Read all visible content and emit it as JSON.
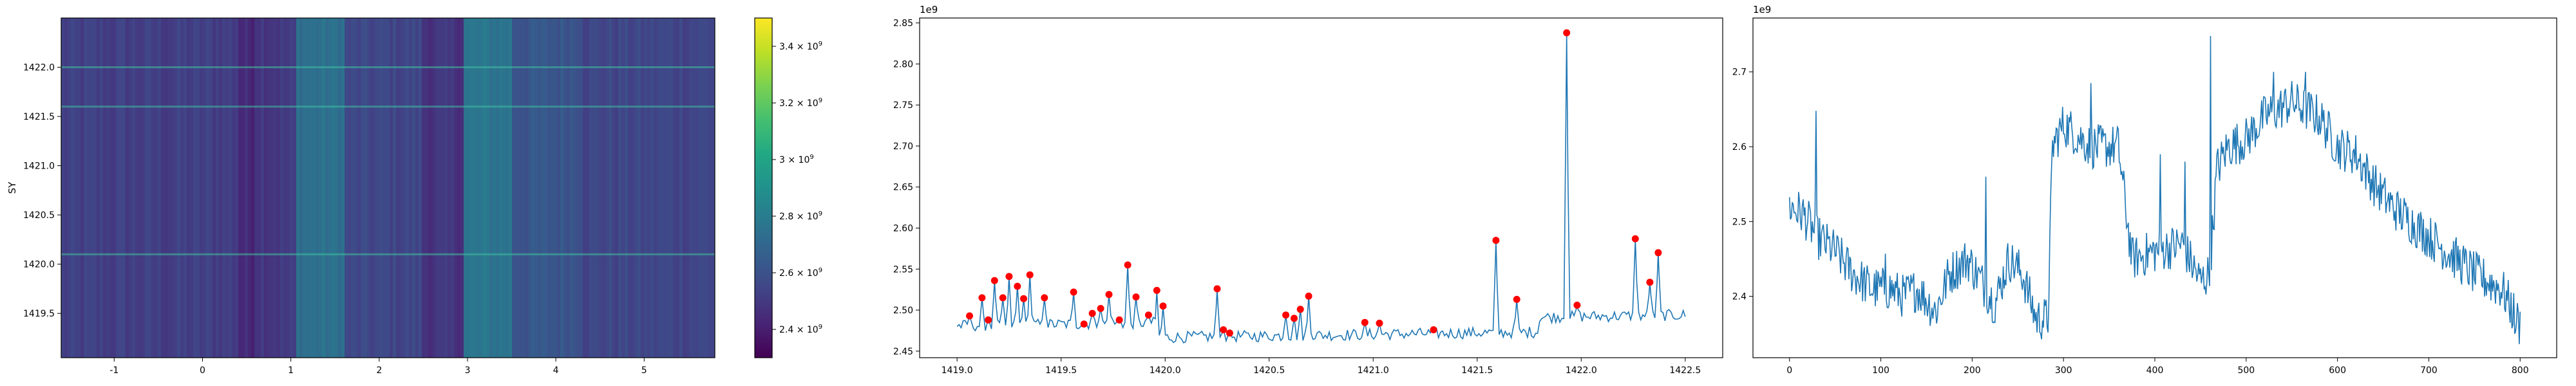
{
  "chart_data": [
    {
      "type": "heatmap",
      "ylabel": "SY",
      "xlim": [
        -1.6,
        5.8
      ],
      "ylim": [
        1419.05,
        1422.5
      ],
      "xticks": [
        "-1",
        "0",
        "1",
        "2",
        "3",
        "4",
        "5"
      ],
      "xtick_values": [
        -1,
        0,
        1,
        2,
        3,
        4,
        5
      ],
      "yticks": [
        "1419.5",
        "1420.0",
        "1420.5",
        "1421.0",
        "1421.5",
        "1422.0"
      ],
      "ytick_values": [
        1419.5,
        1420.0,
        1420.5,
        1421.0,
        1421.5,
        1422.0
      ],
      "colormap": "viridis",
      "colorbar": {
        "range": [
          2300000000.0,
          3500000000.0
        ],
        "ticks": [
          {
            "value": 2400000000.0,
            "base": "2.4 × 10",
            "exp": "9"
          },
          {
            "value": 2600000000.0,
            "base": "2.6 × 10",
            "exp": "9"
          },
          {
            "value": 2800000000.0,
            "base": "2.8 × 10",
            "exp": "9"
          },
          {
            "value": 3000000000.0,
            "base": "3 × 10",
            "exp": "9"
          },
          {
            "value": 3200000000.0,
            "base": "3.2 × 10",
            "exp": "9"
          },
          {
            "value": 3400000000.0,
            "base": "3.4 × 10",
            "exp": "9"
          }
        ]
      },
      "column_bands": [
        {
          "x": [
            -1.6,
            0.4
          ],
          "value": 2520000000.0
        },
        {
          "x": [
            0.4,
            0.6
          ],
          "value": 2440000000.0
        },
        {
          "x": [
            0.6,
            1.05
          ],
          "value": 2500000000.0
        },
        {
          "x": [
            1.05,
            1.6
          ],
          "value": 2740000000.0
        },
        {
          "x": [
            1.6,
            2.5
          ],
          "value": 2550000000.0
        },
        {
          "x": [
            2.5,
            2.95
          ],
          "value": 2480000000.0
        },
        {
          "x": [
            2.95,
            3.5
          ],
          "value": 2760000000.0
        },
        {
          "x": [
            3.5,
            4.3
          ],
          "value": 2620000000.0
        },
        {
          "x": [
            4.3,
            5.8
          ],
          "value": 2550000000.0
        }
      ],
      "row_highlights": [
        1422.0,
        1421.6,
        1420.1
      ]
    },
    {
      "type": "line",
      "color": "#1f77b4",
      "marker_color": "#ff0000",
      "offset_text": "1e9",
      "xlim": [
        1418.82,
        1422.68
      ],
      "ylim": [
        2.442,
        2.856
      ],
      "xticks": [
        "1419.0",
        "1419.5",
        "1420.0",
        "1420.5",
        "1421.0",
        "1421.5",
        "1422.0",
        "1422.5"
      ],
      "xtick_values": [
        1419.0,
        1419.5,
        1420.0,
        1420.5,
        1421.0,
        1421.5,
        1422.0,
        1422.5
      ],
      "yticks": [
        "2.45",
        "2.50",
        "2.55",
        "2.60",
        "2.65",
        "2.70",
        "2.75",
        "2.80",
        "2.85"
      ],
      "ytick_values": [
        2.45,
        2.5,
        2.55,
        2.6,
        2.65,
        2.7,
        2.75,
        2.8,
        2.85
      ],
      "peaks": [
        {
          "x": 1419.06,
          "y": 2.493
        },
        {
          "x": 1419.12,
          "y": 2.515
        },
        {
          "x": 1419.15,
          "y": 2.488
        },
        {
          "x": 1419.18,
          "y": 2.536
        },
        {
          "x": 1419.22,
          "y": 2.515
        },
        {
          "x": 1419.25,
          "y": 2.541
        },
        {
          "x": 1419.29,
          "y": 2.529
        },
        {
          "x": 1419.32,
          "y": 2.514
        },
        {
          "x": 1419.35,
          "y": 2.543
        },
        {
          "x": 1419.42,
          "y": 2.515
        },
        {
          "x": 1419.56,
          "y": 2.522
        },
        {
          "x": 1419.61,
          "y": 2.483
        },
        {
          "x": 1419.65,
          "y": 2.496
        },
        {
          "x": 1419.69,
          "y": 2.502
        },
        {
          "x": 1419.73,
          "y": 2.519
        },
        {
          "x": 1419.78,
          "y": 2.488
        },
        {
          "x": 1419.82,
          "y": 2.555
        },
        {
          "x": 1419.86,
          "y": 2.516
        },
        {
          "x": 1419.92,
          "y": 2.494
        },
        {
          "x": 1419.96,
          "y": 2.524
        },
        {
          "x": 1419.99,
          "y": 2.505
        },
        {
          "x": 1420.25,
          "y": 2.526
        },
        {
          "x": 1420.28,
          "y": 2.476
        },
        {
          "x": 1420.31,
          "y": 2.472
        },
        {
          "x": 1420.58,
          "y": 2.494
        },
        {
          "x": 1420.62,
          "y": 2.49
        },
        {
          "x": 1420.65,
          "y": 2.501
        },
        {
          "x": 1420.69,
          "y": 2.517
        },
        {
          "x": 1420.96,
          "y": 2.485
        },
        {
          "x": 1421.03,
          "y": 2.484
        },
        {
          "x": 1421.29,
          "y": 2.476
        },
        {
          "x": 1421.59,
          "y": 2.585
        },
        {
          "x": 1421.69,
          "y": 2.513
        },
        {
          "x": 1421.93,
          "y": 2.838
        },
        {
          "x": 1421.98,
          "y": 2.506
        },
        {
          "x": 1422.26,
          "y": 2.587
        },
        {
          "x": 1422.33,
          "y": 2.534
        },
        {
          "x": 1422.37,
          "y": 2.57
        }
      ],
      "x_start": 1419.0,
      "x_end": 1422.5,
      "baseline_start": 2.481,
      "baseline_end": 2.494
    },
    {
      "type": "line",
      "color": "#1f77b4",
      "offset_text": "1e9",
      "xlim": [
        -40,
        840
      ],
      "ylim": [
        2.318,
        2.772
      ],
      "xticks": [
        "0",
        "100",
        "200",
        "300",
        "400",
        "500",
        "600",
        "700",
        "800"
      ],
      "xtick_values": [
        0,
        100,
        200,
        300,
        400,
        500,
        600,
        700,
        800
      ],
      "yticks": [
        "2.4",
        "2.5",
        "2.6",
        "2.7"
      ],
      "ytick_values": [
        2.4,
        2.5,
        2.6,
        2.7
      ],
      "x_range": [
        0,
        800
      ],
      "level_profile": [
        [
          0,
          2.52
        ],
        [
          15,
          2.51
        ],
        [
          30,
          2.48
        ],
        [
          50,
          2.46
        ],
        [
          70,
          2.43
        ],
        [
          90,
          2.41
        ],
        [
          110,
          2.41
        ],
        [
          125,
          2.4
        ],
        [
          140,
          2.41
        ],
        [
          160,
          2.38
        ],
        [
          175,
          2.43
        ],
        [
          195,
          2.45
        ],
        [
          210,
          2.42
        ],
        [
          225,
          2.39
        ],
        [
          240,
          2.45
        ],
        [
          255,
          2.43
        ],
        [
          270,
          2.37
        ],
        [
          283,
          2.37
        ],
        [
          288,
          2.6
        ],
        [
          300,
          2.63
        ],
        [
          330,
          2.6
        ],
        [
          360,
          2.6
        ],
        [
          375,
          2.45
        ],
        [
          400,
          2.46
        ],
        [
          430,
          2.47
        ],
        [
          450,
          2.42
        ],
        [
          460,
          2.43
        ],
        [
          468,
          2.57
        ],
        [
          480,
          2.6
        ],
        [
          500,
          2.61
        ],
        [
          520,
          2.64
        ],
        [
          550,
          2.66
        ],
        [
          580,
          2.64
        ],
        [
          600,
          2.6
        ],
        [
          620,
          2.59
        ],
        [
          640,
          2.55
        ],
        [
          660,
          2.52
        ],
        [
          690,
          2.49
        ],
        [
          720,
          2.46
        ],
        [
          750,
          2.43
        ],
        [
          780,
          2.41
        ],
        [
          800,
          2.36
        ]
      ],
      "spikes": [
        {
          "x": 29,
          "y": 2.648
        },
        {
          "x": 105,
          "y": 2.457
        },
        {
          "x": 215,
          "y": 2.56
        },
        {
          "x": 330,
          "y": 2.685
        },
        {
          "x": 406,
          "y": 2.59
        },
        {
          "x": 433,
          "y": 2.58
        },
        {
          "x": 461,
          "y": 2.748
        },
        {
          "x": 530,
          "y": 2.7
        },
        {
          "x": 565,
          "y": 2.7
        },
        {
          "x": 794,
          "y": 2.35
        }
      ]
    }
  ]
}
